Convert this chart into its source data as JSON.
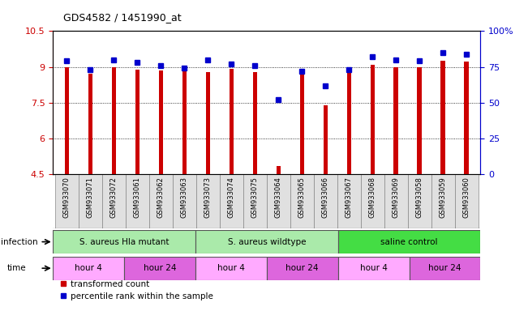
{
  "title": "GDS4582 / 1451990_at",
  "samples": [
    "GSM933070",
    "GSM933071",
    "GSM933072",
    "GSM933061",
    "GSM933062",
    "GSM933063",
    "GSM933073",
    "GSM933074",
    "GSM933075",
    "GSM933064",
    "GSM933065",
    "GSM933066",
    "GSM933067",
    "GSM933068",
    "GSM933069",
    "GSM933058",
    "GSM933059",
    "GSM933060"
  ],
  "red_values": [
    9.0,
    8.72,
    9.0,
    8.88,
    8.85,
    8.85,
    8.77,
    8.92,
    8.77,
    4.85,
    8.73,
    7.38,
    9.0,
    9.07,
    9.0,
    9.0,
    9.27,
    9.23
  ],
  "blue_values_pct": [
    79,
    73,
    80,
    78,
    76,
    74,
    80,
    77,
    76,
    52,
    72,
    62,
    73,
    82,
    80,
    79,
    85,
    84
  ],
  "ylim_left": [
    4.5,
    10.5
  ],
  "ylim_right": [
    0,
    100
  ],
  "yticks_left": [
    4.5,
    6.0,
    7.5,
    9.0,
    10.5
  ],
  "ytick_labels_left": [
    "4.5",
    "6",
    "7.5",
    "9",
    "10.5"
  ],
  "yticks_right": [
    0,
    25,
    50,
    75,
    100
  ],
  "ytick_labels_right": [
    "0",
    "25",
    "50",
    "75",
    "100%"
  ],
  "grid_lines": [
    6.0,
    7.5,
    9.0
  ],
  "bar_color": "#CC0000",
  "dot_color": "#0000CC",
  "background_color": "#ffffff",
  "left_axis_color": "#CC0000",
  "right_axis_color": "#0000CC",
  "infection_groups": [
    {
      "label": "S. aureus Hla mutant",
      "start": 0,
      "end": 6,
      "color": "#aaeaaa"
    },
    {
      "label": "S. aureus wildtype",
      "start": 6,
      "end": 12,
      "color": "#aaeaaa"
    },
    {
      "label": "saline control",
      "start": 12,
      "end": 18,
      "color": "#44dd44"
    }
  ],
  "time_groups": [
    {
      "label": "hour 4",
      "start": 0,
      "end": 3,
      "color": "#ffaaff"
    },
    {
      "label": "hour 24",
      "start": 3,
      "end": 6,
      "color": "#dd66dd"
    },
    {
      "label": "hour 4",
      "start": 6,
      "end": 9,
      "color": "#ffaaff"
    },
    {
      "label": "hour 24",
      "start": 9,
      "end": 12,
      "color": "#dd66dd"
    },
    {
      "label": "hour 4",
      "start": 12,
      "end": 15,
      "color": "#ffaaff"
    },
    {
      "label": "hour 24",
      "start": 15,
      "end": 18,
      "color": "#dd66dd"
    }
  ]
}
